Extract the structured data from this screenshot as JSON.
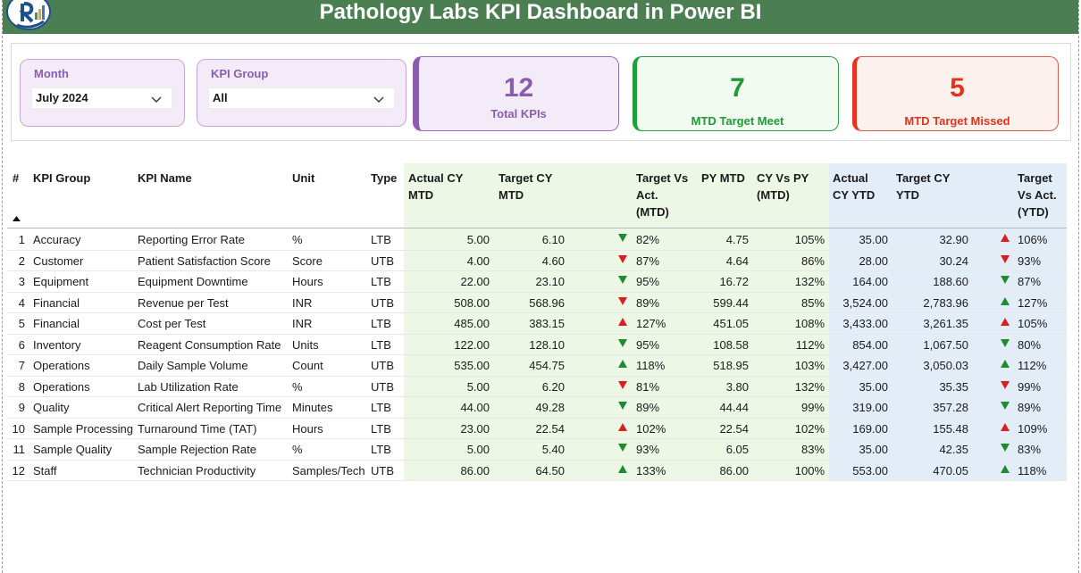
{
  "header": {
    "title": "Pathology Labs KPI Dashboard in Power BI"
  },
  "filters": {
    "month": {
      "label": "Month",
      "value": "July 2024"
    },
    "kpi_group": {
      "label": "KPI Group",
      "value": "All"
    }
  },
  "cards": {
    "total": {
      "value": "12",
      "caption": "Total KPIs",
      "color": "#8a5db0"
    },
    "meet": {
      "value": "7",
      "caption": "MTD Target Meet",
      "color": "#1f9a37"
    },
    "missed": {
      "value": "5",
      "caption": "MTD Target Missed",
      "color": "#e0341c"
    }
  },
  "table": {
    "headers": {
      "num": "#",
      "kpi_group": "KPI Group",
      "kpi_name": "KPI Name",
      "unit": "Unit",
      "type": "Type",
      "actual_mtd": [
        "Actual CY",
        "MTD"
      ],
      "target_mtd": [
        "Target CY",
        "MTD"
      ],
      "tva_mtd": [
        "Target Vs",
        "Act.",
        "(MTD)"
      ],
      "py_mtd": "PY MTD",
      "cy_vs_py": [
        "CY Vs PY",
        "(MTD)"
      ],
      "actual_ytd": [
        "Actual",
        "CY YTD"
      ],
      "target_ytd": [
        "Target CY",
        "YTD"
      ],
      "tva_ytd": [
        "Target",
        "Vs Act.",
        "(YTD)"
      ]
    },
    "rows": [
      {
        "n": "1",
        "group": "Accuracy",
        "name": "Reporting Error Rate",
        "unit": "%",
        "type": "LTB",
        "act_mtd": "5.00",
        "tgt_mtd": "6.10",
        "mtd_dir": "down",
        "mtd_pct": "82%",
        "py_mtd": "4.75",
        "cy_py": "105%",
        "act_ytd": "35.00",
        "tgt_ytd": "32.90",
        "ytd_dir": "up-red",
        "ytd_pct": "106%"
      },
      {
        "n": "2",
        "group": "Customer",
        "name": "Patient Satisfaction Score",
        "unit": "Score",
        "type": "UTB",
        "act_mtd": "4.00",
        "tgt_mtd": "4.60",
        "mtd_dir": "down-red",
        "mtd_pct": "87%",
        "py_mtd": "4.64",
        "cy_py": "86%",
        "act_ytd": "28.00",
        "tgt_ytd": "30.24",
        "ytd_dir": "down-red",
        "ytd_pct": "93%"
      },
      {
        "n": "3",
        "group": "Equipment",
        "name": "Equipment Downtime",
        "unit": "Hours",
        "type": "LTB",
        "act_mtd": "22.00",
        "tgt_mtd": "23.10",
        "mtd_dir": "down",
        "mtd_pct": "95%",
        "py_mtd": "16.72",
        "cy_py": "132%",
        "act_ytd": "164.00",
        "tgt_ytd": "188.60",
        "ytd_dir": "down",
        "ytd_pct": "87%"
      },
      {
        "n": "4",
        "group": "Financial",
        "name": "Revenue per Test",
        "unit": "INR",
        "type": "UTB",
        "act_mtd": "508.00",
        "tgt_mtd": "568.96",
        "mtd_dir": "down-red",
        "mtd_pct": "89%",
        "py_mtd": "599.44",
        "cy_py": "85%",
        "act_ytd": "3,524.00",
        "tgt_ytd": "2,783.96",
        "ytd_dir": "up",
        "ytd_pct": "127%"
      },
      {
        "n": "5",
        "group": "Financial",
        "name": "Cost per Test",
        "unit": "INR",
        "type": "LTB",
        "act_mtd": "485.00",
        "tgt_mtd": "383.15",
        "mtd_dir": "up-red",
        "mtd_pct": "127%",
        "py_mtd": "451.05",
        "cy_py": "108%",
        "act_ytd": "3,433.00",
        "tgt_ytd": "3,261.35",
        "ytd_dir": "up-red",
        "ytd_pct": "105%"
      },
      {
        "n": "6",
        "group": "Inventory",
        "name": "Reagent Consumption Rate",
        "unit": "Units",
        "type": "LTB",
        "act_mtd": "122.00",
        "tgt_mtd": "128.10",
        "mtd_dir": "down",
        "mtd_pct": "95%",
        "py_mtd": "108.58",
        "cy_py": "112%",
        "act_ytd": "854.00",
        "tgt_ytd": "1,067.50",
        "ytd_dir": "down",
        "ytd_pct": "80%"
      },
      {
        "n": "7",
        "group": "Operations",
        "name": "Daily Sample Volume",
        "unit": "Count",
        "type": "UTB",
        "act_mtd": "535.00",
        "tgt_mtd": "454.75",
        "mtd_dir": "up",
        "mtd_pct": "118%",
        "py_mtd": "518.95",
        "cy_py": "103%",
        "act_ytd": "3,427.00",
        "tgt_ytd": "3,050.03",
        "ytd_dir": "up",
        "ytd_pct": "112%"
      },
      {
        "n": "8",
        "group": "Operations",
        "name": "Lab Utilization Rate",
        "unit": "%",
        "type": "UTB",
        "act_mtd": "5.00",
        "tgt_mtd": "6.20",
        "mtd_dir": "down-red",
        "mtd_pct": "81%",
        "py_mtd": "3.80",
        "cy_py": "132%",
        "act_ytd": "35.00",
        "tgt_ytd": "35.35",
        "ytd_dir": "down-red",
        "ytd_pct": "99%"
      },
      {
        "n": "9",
        "group": "Quality",
        "name": "Critical Alert Reporting Time",
        "unit": "Minutes",
        "type": "LTB",
        "act_mtd": "44.00",
        "tgt_mtd": "49.28",
        "mtd_dir": "down",
        "mtd_pct": "89%",
        "py_mtd": "44.44",
        "cy_py": "99%",
        "act_ytd": "319.00",
        "tgt_ytd": "357.28",
        "ytd_dir": "down",
        "ytd_pct": "89%"
      },
      {
        "n": "10",
        "group": "Sample Processing",
        "name": "Turnaround Time (TAT)",
        "unit": "Hours",
        "type": "LTB",
        "act_mtd": "23.00",
        "tgt_mtd": "22.54",
        "mtd_dir": "up-red",
        "mtd_pct": "102%",
        "py_mtd": "22.54",
        "cy_py": "102%",
        "act_ytd": "169.00",
        "tgt_ytd": "155.48",
        "ytd_dir": "up-red",
        "ytd_pct": "109%"
      },
      {
        "n": "11",
        "group": "Sample Quality",
        "name": "Sample Rejection Rate",
        "unit": "%",
        "type": "LTB",
        "act_mtd": "5.00",
        "tgt_mtd": "5.40",
        "mtd_dir": "down",
        "mtd_pct": "93%",
        "py_mtd": "6.05",
        "cy_py": "83%",
        "act_ytd": "35.00",
        "tgt_ytd": "42.35",
        "ytd_dir": "down",
        "ytd_pct": "83%"
      },
      {
        "n": "12",
        "group": "Staff",
        "name": "Technician Productivity",
        "unit": "Samples/Tech",
        "type": "UTB",
        "act_mtd": "86.00",
        "tgt_mtd": "64.50",
        "mtd_dir": "up",
        "mtd_pct": "133%",
        "py_mtd": "86.00",
        "cy_py": "100%",
        "act_ytd": "553.00",
        "tgt_ytd": "470.05",
        "ytd_dir": "up",
        "ytd_pct": "118%"
      }
    ]
  },
  "colors": {
    "header_bg": "#4b7f52",
    "good": "#1f8a2e",
    "bad": "#d92020",
    "mtd_bg": "#edf7e6",
    "ytd_bg": "#e3edf8"
  },
  "icons": {
    "sort": "sort-ascending-icon",
    "dropdown": "chevron-down-icon",
    "good": "triangle-icon",
    "bad": "triangle-icon"
  }
}
